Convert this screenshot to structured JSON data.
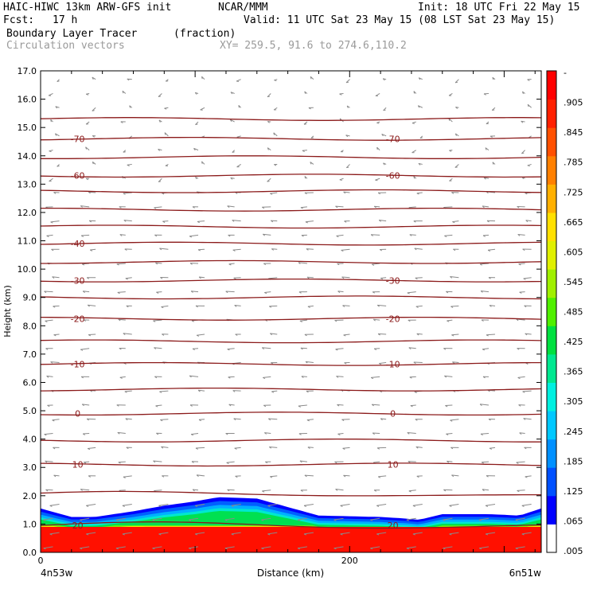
{
  "header": {
    "model": "HAIC-HIWC 13km ARW-GFS init",
    "org": "NCAR/MMM",
    "init": "Init: 18 UTC Fri 22 May 15",
    "fcst_label": "Fcst:",
    "fcst_value": "17 h",
    "valid": "Valid: 11 UTC Sat 23 May 15 (08 LST Sat 23 May 15)",
    "field1": "Boundary Layer Tracer",
    "field1_units": "(fraction)",
    "field2": "Circulation vectors",
    "xy": "XY= 259.5, 91.6 to 274.6,110.2"
  },
  "colors": {
    "contour": "#8b1a1a",
    "vector": "#8a8a8a",
    "colorbar": [
      "#ffffff",
      "#0000ff",
      "#0050ff",
      "#0090ff",
      "#00c8ff",
      "#00f0e0",
      "#00e890",
      "#00e040",
      "#50f000",
      "#a0f000",
      "#e0f000",
      "#ffe000",
      "#ffb000",
      "#ff8000",
      "#ff5000",
      "#ff2000",
      "#ff0000"
    ]
  },
  "chart_data": {
    "type": "cross-section",
    "ylabel": "Height (km)",
    "xlabel": "Distance (km)",
    "x_left_label": "4n53w",
    "x_right_label": "6n51w",
    "xlim": [
      0,
      324
    ],
    "ylim": [
      0,
      17
    ],
    "x_ticks": [
      0,
      200
    ],
    "y_ticks": [
      "0.0",
      "1.0",
      "2.0",
      "3.0",
      "4.0",
      "5.0",
      "6.0",
      "7.0",
      "8.0",
      "9.0",
      "10.0",
      "11.0",
      "12.0",
      "13.0",
      "14.0",
      "15.0",
      "16.0",
      "17.0"
    ],
    "colorbar_labels": [
      "-",
      ".905",
      ".845",
      ".785",
      ".725",
      ".665",
      ".605",
      ".545",
      ".485",
      ".425",
      ".365",
      ".305",
      ".245",
      ".185",
      ".125",
      ".065",
      ".005"
    ],
    "tracer_top_km": [
      [
        0,
        1.55
      ],
      [
        20,
        1.25
      ],
      [
        35,
        1.25
      ],
      [
        60,
        1.45
      ],
      [
        80,
        1.65
      ],
      [
        100,
        1.8
      ],
      [
        115,
        1.95
      ],
      [
        140,
        1.9
      ],
      [
        160,
        1.6
      ],
      [
        180,
        1.3
      ],
      [
        220,
        1.25
      ],
      [
        235,
        1.2
      ],
      [
        245,
        1.15
      ],
      [
        260,
        1.35
      ],
      [
        290,
        1.35
      ],
      [
        310,
        1.3
      ],
      [
        324,
        1.55
      ]
    ],
    "isotherms": [
      {
        "label": "20",
        "height_km": 0.95
      },
      {
        "label": "10",
        "height_km": 3.1
      },
      {
        "label": "0",
        "height_km": 4.9
      },
      {
        "label": "-10",
        "height_km": 6.65
      },
      {
        "label": "-20",
        "height_km": 8.25
      },
      {
        "label": "-30",
        "height_km": 9.6
      },
      {
        "label": "-40",
        "height_km": 10.9
      },
      {
        "label": "-60",
        "height_km": 13.3
      },
      {
        "label": "-70",
        "height_km": 14.6
      }
    ],
    "contour_levels_km": [
      0.95,
      2.05,
      3.1,
      3.95,
      4.9,
      5.75,
      6.65,
      7.45,
      8.25,
      9.0,
      9.6,
      10.25,
      10.9,
      11.5,
      12.1,
      12.75,
      13.3,
      13.95,
      14.6,
      15.3
    ]
  }
}
